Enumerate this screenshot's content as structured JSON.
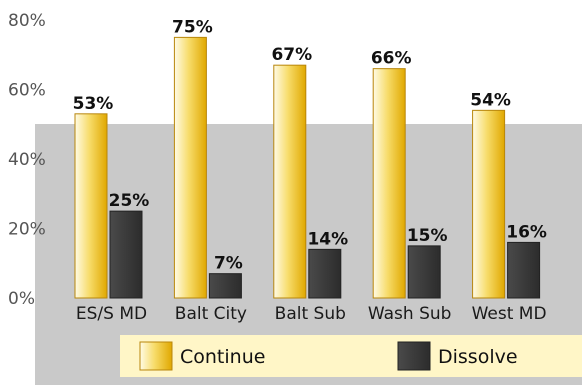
{
  "chart_data": {
    "type": "bar",
    "title": "",
    "xlabel": "",
    "ylabel": "",
    "ylim": [
      0,
      80
    ],
    "yticks": [
      "0%",
      "20%",
      "40%",
      "60%",
      "80%"
    ],
    "categories": [
      "ES/S MD",
      "Balt City",
      "Balt Sub",
      "Wash Sub",
      "West MD"
    ],
    "series": [
      {
        "name": "Continue",
        "values": [
          53,
          75,
          67,
          66,
          54
        ],
        "labels": [
          "53%",
          "75%",
          "67%",
          "66%",
          "54%"
        ],
        "color": "#f2c12e"
      },
      {
        "name": "Dissolve",
        "values": [
          25,
          7,
          14,
          15,
          16
        ],
        "labels": [
          "25%",
          "7%",
          "14%",
          "15%",
          "16%"
        ],
        "color": "#3a3a3a"
      }
    ],
    "legend": "bottom",
    "grid": false,
    "plot_background": "#c9c9c9",
    "legend_background": "#fff6c7"
  }
}
